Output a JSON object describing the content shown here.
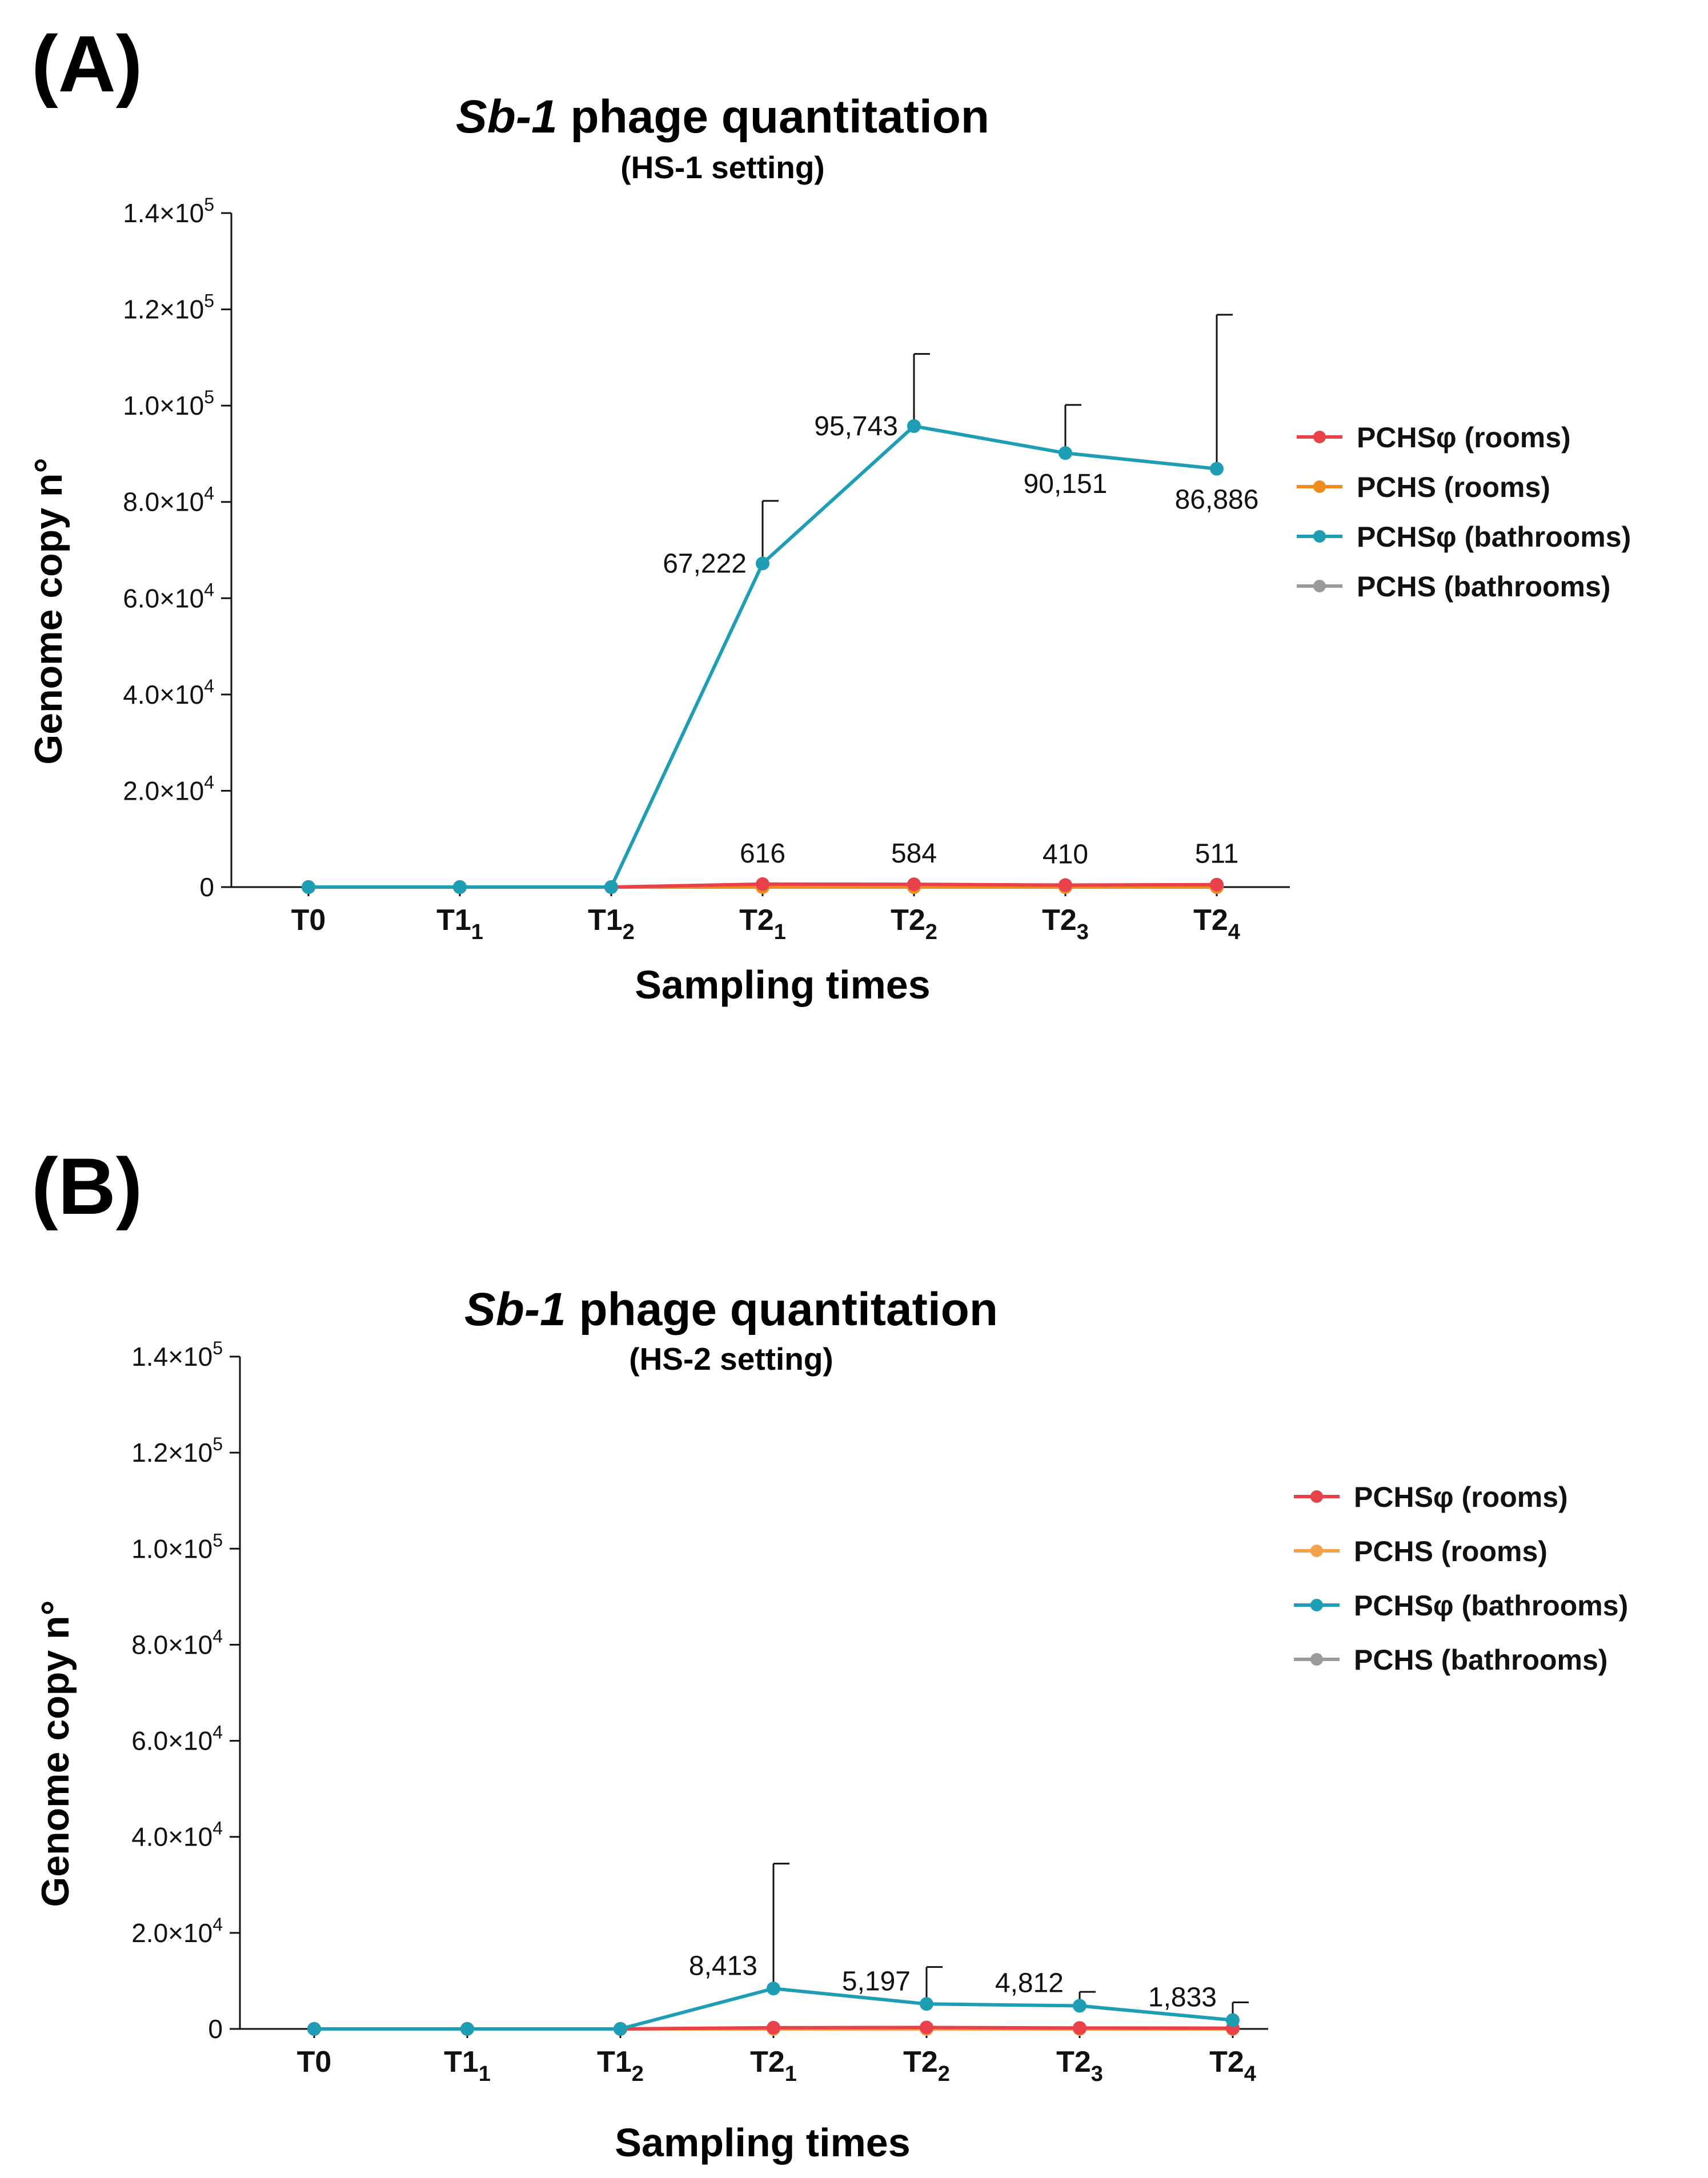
{
  "chart_data": [
    {
      "panel_label": "(A)",
      "type": "line",
      "title_italic": "Sb-1",
      "title_rest": " phage quantitation",
      "subtitle": "(HS-1 setting)",
      "xlabel": "Sampling times",
      "ylabel": "Genome copy n°",
      "ylim": [
        0,
        140000
      ],
      "yticks": [
        {
          "value": 0,
          "mant": "0",
          "exp": ""
        },
        {
          "value": 20000,
          "mant": "2.0×10",
          "exp": "4"
        },
        {
          "value": 40000,
          "mant": "4.0×10",
          "exp": "4"
        },
        {
          "value": 60000,
          "mant": "6.0×10",
          "exp": "4"
        },
        {
          "value": 80000,
          "mant": "8.0×10",
          "exp": "4"
        },
        {
          "value": 100000,
          "mant": "1.0×10",
          "exp": "5"
        },
        {
          "value": 120000,
          "mant": "1.2×10",
          "exp": "5"
        },
        {
          "value": 140000,
          "mant": "1.4×10",
          "exp": "5"
        }
      ],
      "categories": [
        {
          "base": "T0",
          "sub": ""
        },
        {
          "base": "T1",
          "sub": "1"
        },
        {
          "base": "T1",
          "sub": "2"
        },
        {
          "base": "T2",
          "sub": "1"
        },
        {
          "base": "T2",
          "sub": "2"
        },
        {
          "base": "T2",
          "sub": "3"
        },
        {
          "base": "T2",
          "sub": "4"
        }
      ],
      "series": [
        {
          "name": "PCHSφ (rooms)",
          "color": "#e8414a",
          "values": [
            0,
            0,
            0,
            616,
            584,
            410,
            511
          ],
          "errors": [
            0,
            0,
            0,
            0,
            0,
            0,
            0
          ]
        },
        {
          "name": "PCHS (rooms)",
          "color": "#f08c1e",
          "values": [
            0,
            0,
            0,
            0,
            0,
            0,
            0
          ],
          "errors": [
            0,
            0,
            0,
            0,
            0,
            0,
            0
          ]
        },
        {
          "name": "PCHSφ (bathrooms)",
          "color": "#1e9eb4",
          "values": [
            0,
            0,
            0,
            67222,
            95743,
            90151,
            86886
          ],
          "errors": [
            0,
            0,
            0,
            13000,
            15000,
            10000,
            32000
          ]
        },
        {
          "name": "PCHS (bathrooms)",
          "color": "#9a9a9a",
          "values": [
            0,
            0,
            0,
            0,
            0,
            0,
            0
          ],
          "errors": [
            0,
            0,
            0,
            0,
            0,
            0,
            0
          ]
        }
      ],
      "annotations": [
        {
          "text": "616",
          "cat": 3,
          "value": 616,
          "pos": "above"
        },
        {
          "text": "584",
          "cat": 4,
          "value": 584,
          "pos": "above"
        },
        {
          "text": "410",
          "cat": 5,
          "value": 410,
          "pos": "above"
        },
        {
          "text": "511",
          "cat": 6,
          "value": 511,
          "pos": "above"
        },
        {
          "text": "67,222",
          "cat": 3,
          "value": 67222,
          "pos": "left"
        },
        {
          "text": "95,743",
          "cat": 4,
          "value": 95743,
          "pos": "left"
        },
        {
          "text": "90,151",
          "cat": 5,
          "value": 90151,
          "pos": "below"
        },
        {
          "text": "86,886",
          "cat": 6,
          "value": 86886,
          "pos": "below"
        }
      ],
      "legend_position": "right"
    },
    {
      "panel_label": "(B)",
      "type": "line",
      "title_italic": "Sb-1",
      "title_rest": " phage quantitation",
      "subtitle": "(HS-2 setting)",
      "xlabel": "Sampling times",
      "ylabel": "Genome copy n°",
      "ylim": [
        0,
        140000
      ],
      "yticks": [
        {
          "value": 0,
          "mant": "0",
          "exp": ""
        },
        {
          "value": 20000,
          "mant": "2.0×10",
          "exp": "4"
        },
        {
          "value": 40000,
          "mant": "4.0×10",
          "exp": "4"
        },
        {
          "value": 60000,
          "mant": "6.0×10",
          "exp": "4"
        },
        {
          "value": 80000,
          "mant": "8.0×10",
          "exp": "4"
        },
        {
          "value": 100000,
          "mant": "1.0×10",
          "exp": "5"
        },
        {
          "value": 120000,
          "mant": "1.2×10",
          "exp": "5"
        },
        {
          "value": 140000,
          "mant": "1.4×10",
          "exp": "5"
        }
      ],
      "categories": [
        {
          "base": "T0",
          "sub": ""
        },
        {
          "base": "T1",
          "sub": "1"
        },
        {
          "base": "T1",
          "sub": "2"
        },
        {
          "base": "T2",
          "sub": "1"
        },
        {
          "base": "T2",
          "sub": "2"
        },
        {
          "base": "T2",
          "sub": "3"
        },
        {
          "base": "T2",
          "sub": "4"
        }
      ],
      "series": [
        {
          "name": "PCHSφ (rooms)",
          "color": "#e8414a",
          "values": [
            0,
            0,
            0,
            250,
            300,
            200,
            150
          ],
          "errors": [
            0,
            0,
            0,
            0,
            0,
            0,
            0
          ]
        },
        {
          "name": "PCHS (rooms)",
          "color": "#f4a24a",
          "values": [
            0,
            0,
            0,
            0,
            0,
            0,
            0
          ],
          "errors": [
            0,
            0,
            0,
            0,
            0,
            0,
            0
          ]
        },
        {
          "name": "PCHSφ (bathrooms)",
          "color": "#1e9eb4",
          "values": [
            0,
            0,
            0,
            8413,
            5197,
            4812,
            1833
          ],
          "errors": [
            0,
            0,
            0,
            26000,
            7700,
            2900,
            3700
          ]
        },
        {
          "name": "PCHS (bathrooms)",
          "color": "#9a9a9a",
          "values": [
            0,
            0,
            0,
            0,
            0,
            0,
            0
          ],
          "errors": [
            0,
            0,
            0,
            0,
            0,
            0,
            0
          ]
        }
      ],
      "annotations": [
        {
          "text": "8,413",
          "cat": 3,
          "value": 8413,
          "pos": "upleft"
        },
        {
          "text": "5,197",
          "cat": 4,
          "value": 5197,
          "pos": "upleft"
        },
        {
          "text": "4,812",
          "cat": 5,
          "value": 4812,
          "pos": "upleft"
        },
        {
          "text": "1,833",
          "cat": 6,
          "value": 1833,
          "pos": "upleft"
        }
      ],
      "legend_position": "right"
    }
  ]
}
